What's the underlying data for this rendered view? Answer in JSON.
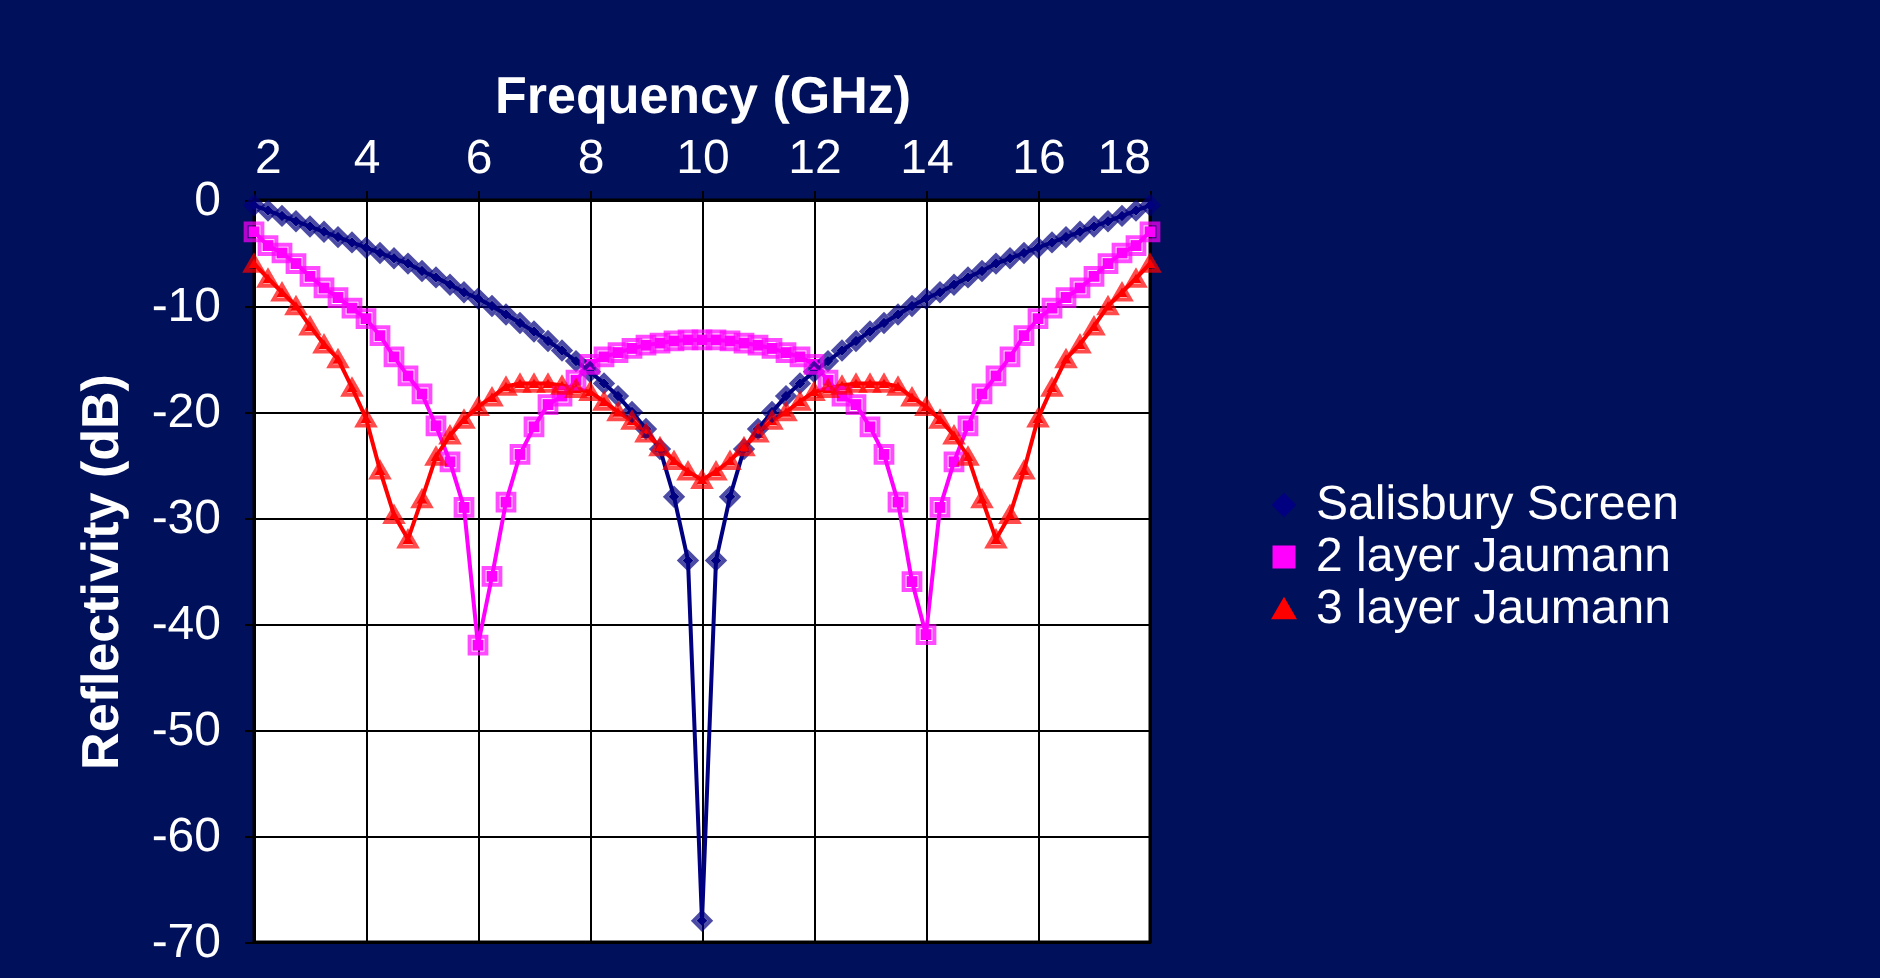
{
  "chart_data": {
    "type": "line",
    "xlabel": "Frequency (GHz)",
    "ylabel": "Reflectivity  (dB)",
    "x": [
      2,
      2.25,
      2.5,
      2.75,
      3,
      3.25,
      3.5,
      3.75,
      4,
      4.25,
      4.5,
      4.75,
      5,
      5.25,
      5.5,
      5.75,
      6,
      6.25,
      6.5,
      6.75,
      7,
      7.25,
      7.5,
      7.75,
      8,
      8.25,
      8.5,
      8.75,
      9,
      9.25,
      9.5,
      9.75,
      10,
      10.25,
      10.5,
      10.75,
      11,
      11.25,
      11.5,
      11.75,
      12,
      12.25,
      12.5,
      12.75,
      13,
      13.25,
      13.5,
      13.75,
      14,
      14.25,
      14.5,
      14.75,
      15,
      15.25,
      15.5,
      15.75,
      16,
      16.25,
      16.5,
      16.75,
      17,
      17.25,
      17.5,
      17.75,
      18
    ],
    "series": [
      {
        "name": "Salisbury Screen",
        "color": "#000080",
        "marker": "diamond",
        "values": [
          -0.5,
          -1,
          -1.5,
          -2,
          -2.5,
          -3,
          -3.5,
          -4,
          -4.5,
          -5,
          -5.5,
          -6,
          -6.7,
          -7.3,
          -8,
          -8.7,
          -9.3,
          -10,
          -10.8,
          -11.6,
          -12.4,
          -13.3,
          -14.2,
          -15.2,
          -16.2,
          -17.3,
          -18.5,
          -20,
          -21.6,
          -23.5,
          -28,
          -34,
          -68,
          -34,
          -28,
          -23.5,
          -21.6,
          -20,
          -18.5,
          -17.3,
          -16.2,
          -15.2,
          -14.2,
          -13.3,
          -12.4,
          -11.6,
          -10.8,
          -10,
          -9.3,
          -8.7,
          -8,
          -7.3,
          -6.7,
          -6,
          -5.5,
          -5,
          -4.5,
          -4,
          -3.5,
          -3,
          -2.5,
          -2,
          -1.5,
          -1,
          -0.5
        ]
      },
      {
        "name": "2 layer Jaumann",
        "color": "#ff00ff",
        "marker": "square",
        "values": [
          -3,
          -4.3,
          -5,
          -6,
          -7.2,
          -8.3,
          -9.2,
          -10.2,
          -11.2,
          -12.8,
          -14.8,
          -16.6,
          -18.3,
          -21.3,
          -24.7,
          -29,
          -42,
          -35.5,
          -28.5,
          -24,
          -21.4,
          -19.3,
          -18.5,
          -17,
          -15.5,
          -14.8,
          -14.4,
          -14,
          -13.7,
          -13.5,
          -13.3,
          -13.2,
          -13.2,
          -13.2,
          -13.3,
          -13.5,
          -13.7,
          -14,
          -14.4,
          -14.8,
          -15.5,
          -17,
          -18.5,
          -19.3,
          -21.4,
          -24,
          -28.5,
          -36,
          -41,
          -29,
          -24.7,
          -21.3,
          -18.3,
          -16.6,
          -14.8,
          -12.8,
          -11.2,
          -10.2,
          -9.2,
          -8.3,
          -7.2,
          -6,
          -5,
          -4.3,
          -3
        ]
      },
      {
        "name": "3 layer Jaumann",
        "color": "#ff0000",
        "marker": "triangle",
        "values": [
          -6,
          -7.4,
          -8.7,
          -10,
          -11.9,
          -13.6,
          -15,
          -17.7,
          -20.6,
          -25.5,
          -29.7,
          -32,
          -28.2,
          -24.2,
          -22.2,
          -20.7,
          -19.5,
          -18.6,
          -17.6,
          -17.3,
          -17.3,
          -17.3,
          -17.5,
          -17.8,
          -18.1,
          -19,
          -20,
          -20.8,
          -22,
          -23.3,
          -24.6,
          -25.6,
          -26.4,
          -25.6,
          -24.6,
          -23.3,
          -22,
          -20.8,
          -20,
          -19,
          -18.1,
          -17.8,
          -17.5,
          -17.3,
          -17.3,
          -17.3,
          -17.6,
          -18.6,
          -19.5,
          -20.7,
          -22.2,
          -24.2,
          -28.2,
          -32,
          -29.7,
          -25.5,
          -20.6,
          -17.7,
          -15,
          -13.6,
          -11.9,
          -10,
          -8.7,
          -7.4,
          -6
        ]
      }
    ],
    "xlim": [
      2,
      18
    ],
    "xticks": [
      2,
      4,
      6,
      8,
      10,
      12,
      14,
      16,
      18
    ],
    "ylim": [
      -70,
      0
    ],
    "yticks": [
      0,
      -10,
      -20,
      -30,
      -40,
      -50,
      -60,
      -70
    ],
    "grid": true,
    "legend": "right"
  }
}
